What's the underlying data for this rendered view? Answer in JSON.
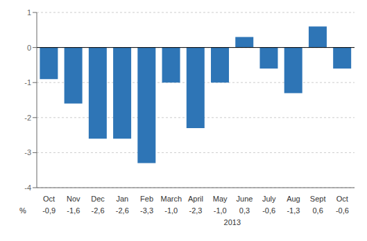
{
  "chart_data": {
    "type": "bar",
    "categories": [
      "Oct",
      "Nov",
      "Dec",
      "Jan",
      "Feb",
      "March",
      "April",
      "May",
      "June",
      "July",
      "Aug",
      "Sept",
      "Oct"
    ],
    "values": [
      -0.9,
      -1.6,
      -2.6,
      -2.6,
      -3.3,
      -1.0,
      -2.3,
      -1.0,
      0.3,
      -0.6,
      -1.3,
      0.6,
      -0.6
    ],
    "value_labels": [
      "-0,9",
      "-1,6",
      "-2,6",
      "-2,6",
      "-3,3",
      "-1,0",
      "-2,3",
      "-1,0",
      "0,3",
      "-0,6",
      "-1,3",
      "0,6",
      "-0,6"
    ],
    "data_labels": true,
    "color": "#2E75B6",
    "ylim": [
      -4,
      1
    ],
    "yticks": [
      -4,
      -3,
      -2,
      -1,
      0,
      1
    ],
    "grid": true,
    "annotations": [
      "2013",
      "%"
    ]
  }
}
